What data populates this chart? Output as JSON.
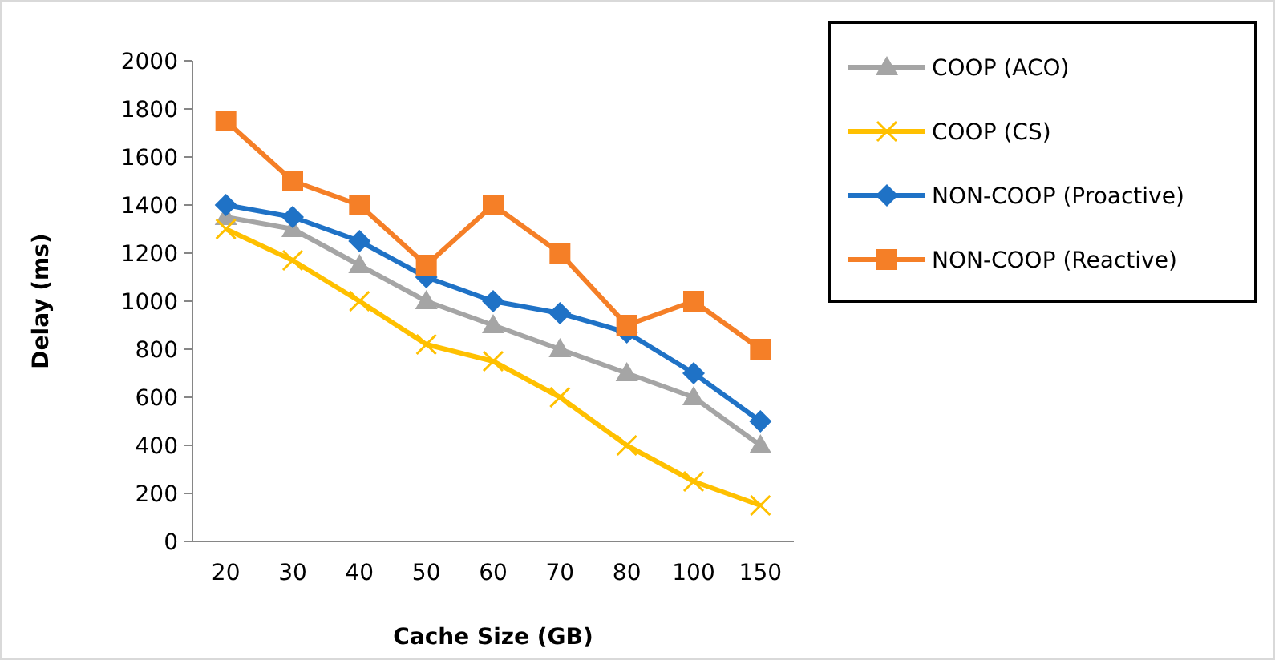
{
  "chart_data": {
    "type": "line",
    "xlabel": "Cache Size (GB)",
    "ylabel": "Delay (ms)",
    "categories": [
      "20",
      "30",
      "40",
      "50",
      "60",
      "70",
      "80",
      "100",
      "150"
    ],
    "ylim": [
      0,
      2000
    ],
    "yticks": [
      0,
      200,
      400,
      600,
      800,
      1000,
      1200,
      1400,
      1600,
      1800,
      2000
    ],
    "grid": false,
    "legend": "right",
    "series": [
      {
        "name": "COOP (ACO)",
        "color": "#a5a5a5",
        "marker": "triangle",
        "values": [
          1350,
          1300,
          1150,
          1000,
          900,
          800,
          700,
          600,
          400
        ]
      },
      {
        "name": "COOP (CS)",
        "color": "#ffc000",
        "marker": "cross",
        "values": [
          1300,
          1170,
          1000,
          820,
          750,
          600,
          400,
          250,
          150
        ]
      },
      {
        "name": "NON-COOP (Proactive)",
        "color": "#1f72c6",
        "marker": "diamond",
        "values": [
          1400,
          1350,
          1250,
          1100,
          1000,
          950,
          870,
          700,
          500
        ]
      },
      {
        "name": "NON-COOP (Reactive)",
        "color": "#f57f27",
        "marker": "square",
        "values": [
          1750,
          1500,
          1400,
          1150,
          1400,
          1200,
          900,
          1000,
          800
        ]
      }
    ]
  }
}
